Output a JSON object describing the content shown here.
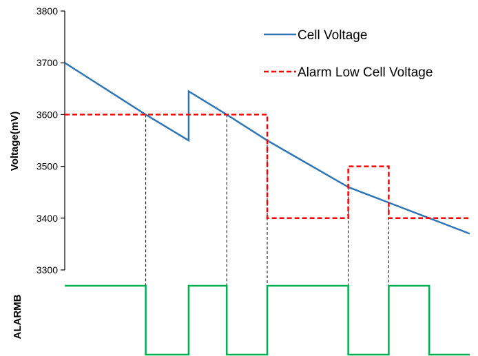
{
  "chart_data": {
    "type": "line",
    "ylabel": "Voltage(mV)",
    "ylim": [
      3300,
      3800
    ],
    "yticks": [
      3300,
      3400,
      3500,
      3600,
      3700,
      3800
    ],
    "grid": false,
    "legend_position": "top-right",
    "series": [
      {
        "name": "Cell Voltage",
        "color": "#2e75b6",
        "style": "solid",
        "points": [
          [
            0,
            3700
          ],
          [
            1.0,
            3600
          ],
          [
            1.53,
            3550
          ],
          [
            1.53,
            3645
          ],
          [
            2.0,
            3600
          ],
          [
            2.5,
            3550
          ],
          [
            3.5,
            3460
          ],
          [
            4.0,
            3430
          ],
          [
            4.5,
            3400
          ],
          [
            5.0,
            3370
          ]
        ]
      },
      {
        "name": "Alarm Low Cell Voltage",
        "color": "#ff0000",
        "style": "dashed",
        "points": [
          [
            0,
            3600
          ],
          [
            2.5,
            3600
          ],
          [
            2.5,
            3400
          ],
          [
            3.5,
            3400
          ],
          [
            3.5,
            3500
          ],
          [
            4.0,
            3500
          ],
          [
            4.0,
            3400
          ],
          [
            5.0,
            3400
          ]
        ]
      }
    ],
    "alarm_signal": {
      "name": "ALARMB",
      "color": "#00b050",
      "levels": [
        [
          0,
          1
        ],
        [
          1.0,
          1
        ],
        [
          1.0,
          0
        ],
        [
          1.53,
          0
        ],
        [
          1.53,
          1
        ],
        [
          2.0,
          1
        ],
        [
          2.0,
          0
        ],
        [
          2.5,
          0
        ],
        [
          2.5,
          1
        ],
        [
          3.5,
          1
        ],
        [
          3.5,
          0
        ],
        [
          4.0,
          0
        ],
        [
          4.0,
          1
        ],
        [
          4.5,
          1
        ],
        [
          4.5,
          0
        ],
        [
          5.0,
          0
        ]
      ]
    },
    "guide_lines_x": [
      1.0,
      2.0,
      2.5,
      3.5,
      4.0
    ]
  }
}
